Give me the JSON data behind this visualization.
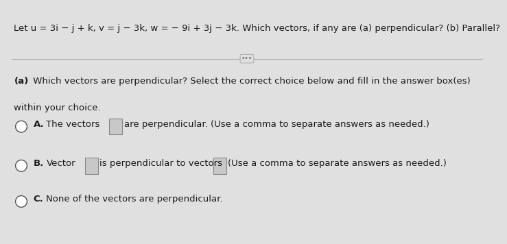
{
  "background_color": "#e0e0e0",
  "title_text": "Let u = 3i − j + k, v = j − 3k, w = − 9i + 3j − 3k. Which vectors, if any are (a) perpendicular? (b) Parallel?",
  "divider_dots": "•••",
  "section_a_bold": "(a)",
  "section_a_rest": " Which vectors are perpendicular? Select the correct choice below and fill in the answer box(es)",
  "section_a_line2": "within your choice.",
  "opt_A_bold": "A.",
  "opt_A_t1": "  The vectors",
  "opt_A_t2": " are perpendicular. (Use a comma to separate answers as needed.)",
  "opt_B_bold": "B.",
  "opt_B_t1": "  Vector",
  "opt_B_t2": " is perpendicular to vectors",
  "opt_B_t3": "  (Use a comma to separate answers as needed.)",
  "opt_C_bold": "C.",
  "opt_C_t1": "  None of the vectors are perpendicular.",
  "text_color": "#1a1a1a",
  "box_fill": "#c8c8c8",
  "box_edge": "#888888",
  "circle_fill": "#ffffff",
  "circle_edge": "#555555",
  "fs_title": 9.5,
  "fs_body": 9.5,
  "fs_option": 9.5
}
